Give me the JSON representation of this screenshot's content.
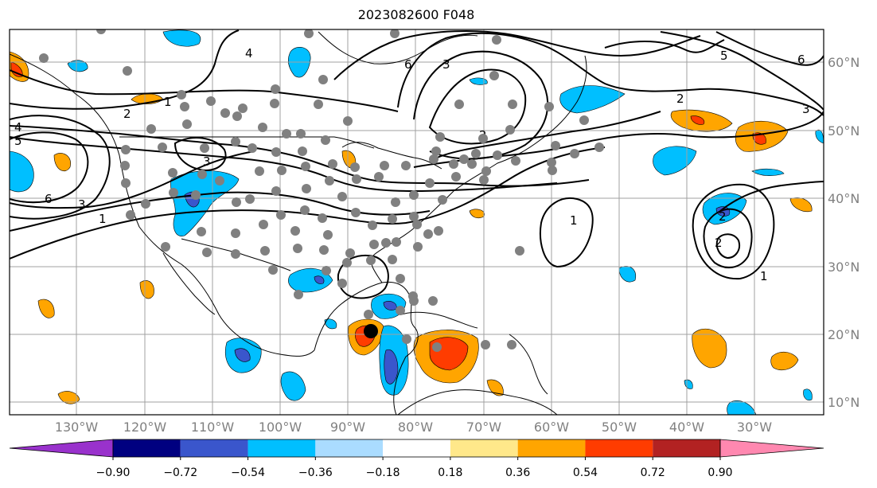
{
  "title": "2023082600 F048",
  "map": {
    "lon_labels": [
      "130°W",
      "120°W",
      "110°W",
      "100°W",
      "90°W",
      "80°W",
      "70°W",
      "60°W",
      "50°W",
      "40°W",
      "30°W"
    ],
    "lat_labels": [
      "60°N",
      "50°N",
      "40°N",
      "30°N",
      "20°N",
      "10°N"
    ],
    "contour_labels": [
      "1",
      "1",
      "1",
      "1",
      "2",
      "2",
      "2",
      "2",
      "2",
      "3",
      "3",
      "3",
      "3",
      "4",
      "4",
      "5",
      "5",
      "6",
      "6",
      "6"
    ],
    "colors": {
      "hot_pink": "#ff88b0",
      "dark_red": "#b22222",
      "red_orange": "#ff3c00",
      "orange": "#ffa500",
      "light_yellow": "#ffe88a",
      "light_blue": "#aadcff",
      "sky_blue": "#00bfff",
      "royal_blue": "#3a56cc",
      "navy": "#000080",
      "purple": "#9932cc",
      "station_marker": "#808080",
      "grid": "#a0a0a0"
    }
  },
  "colorbar": {
    "ticks": [
      "−0.90",
      "−0.72",
      "−0.54",
      "−0.36",
      "−0.18",
      "0.18",
      "0.36",
      "0.54",
      "0.72",
      "0.90"
    ],
    "segments": [
      "#9932cc",
      "#000080",
      "#3a56cc",
      "#00bfff",
      "#aadcff",
      "#ffffff",
      "#ffe88a",
      "#ffa500",
      "#ff3c00",
      "#b22222",
      "#ff88b0"
    ]
  }
}
